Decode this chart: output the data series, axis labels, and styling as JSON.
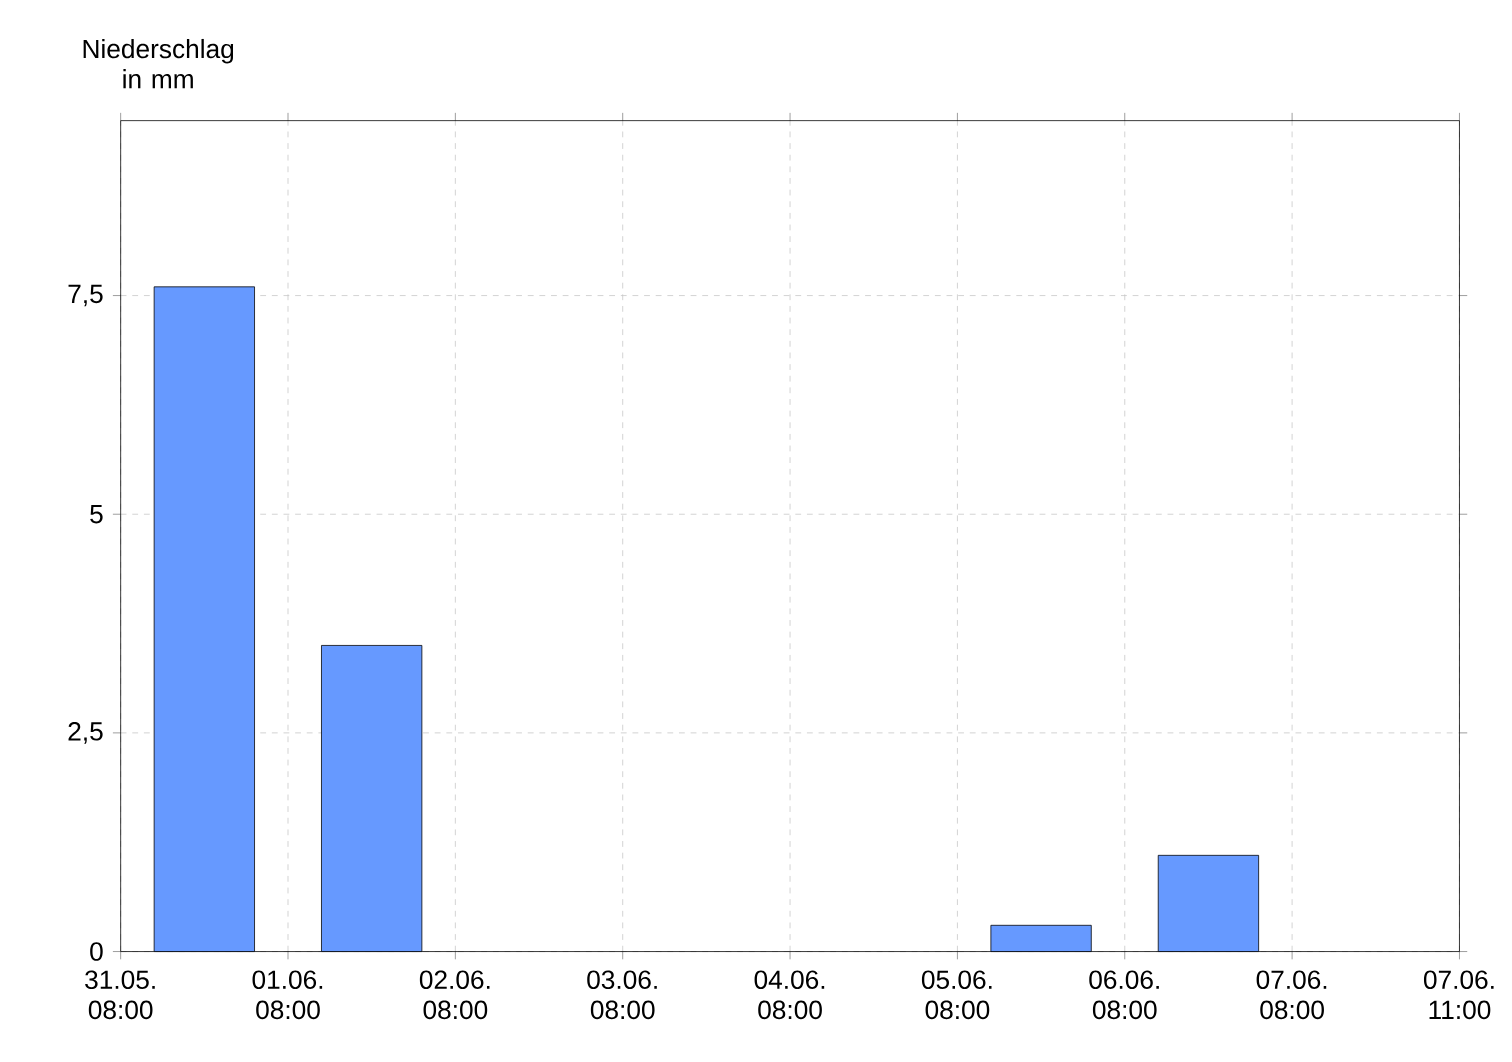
{
  "chart_data": {
    "type": "bar",
    "ylabel": "Niederschlag in mm",
    "categories": [
      null,
      null,
      null,
      null,
      null,
      null,
      null,
      null
    ],
    "values": [
      7.6,
      3.5,
      null,
      null,
      null,
      0.3,
      1.1,
      null
    ],
    "color": "#6699ff",
    "annotations": [
      "31.05. 08:00",
      "01.06. 08:00",
      "02.06. 08:00",
      "03.06. 08:00",
      "04.06. 08:00",
      "05.06. 08:00",
      "06.06. 08:00",
      "07.06. 08:00",
      "07.06. 11:00"
    ],
    "ylim": [
      0,
      9.5
    ],
    "yticks": [
      0,
      {
        "value": 2.5,
        "label": "2,5"
      },
      5,
      {
        "value": 7.5,
        "label": "7,5"
      }
    ],
    "grid": true
  }
}
